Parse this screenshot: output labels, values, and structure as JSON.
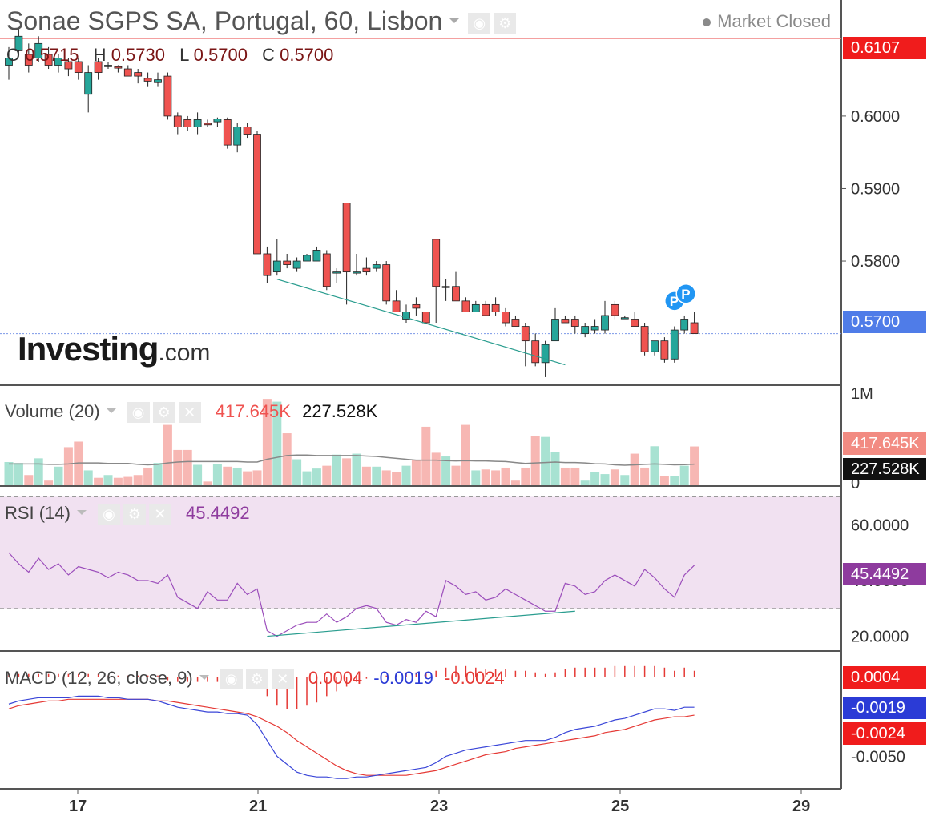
{
  "header": {
    "title": "Sonae SGPS SA, Portugal, 60, Lisbon",
    "market_status": "Market Closed",
    "ohlc": {
      "o_label": "O",
      "o": "0.5715",
      "h_label": "H",
      "h": "0.5730",
      "l_label": "L",
      "l": "0.5700",
      "c_label": "C",
      "c": "0.5700"
    },
    "logo_main": "Investing",
    "logo_suffix": ".com"
  },
  "colors": {
    "up": "#26a69a",
    "down": "#ef5350",
    "grid": "#d7d7d7",
    "rsi": "#9b4dbb",
    "macd": "#3a46d8",
    "signal": "#e53935"
  },
  "chart_data": [
    {
      "type": "candlestick",
      "title": "Sonae SGPS SA, Portugal, 60, Lisbon",
      "ylim": [
        0.563,
        0.616
      ],
      "yticks": [
        "0.6000",
        "0.5900",
        "0.5800"
      ],
      "x_ticks": [
        "17",
        "21",
        "23",
        "25",
        "29"
      ],
      "last_price": {
        "value": 0.57,
        "label": "0.5700"
      },
      "high_line": {
        "value": 0.6107,
        "label": "0.6107"
      },
      "candles": [
        [
          0.607,
          0.6095,
          0.605,
          0.608
        ],
        [
          0.609,
          0.612,
          0.6085,
          0.611
        ],
        [
          0.6085,
          0.61,
          0.606,
          0.607
        ],
        [
          0.608,
          0.611,
          0.6075,
          0.61
        ],
        [
          0.6085,
          0.6095,
          0.6065,
          0.607
        ],
        [
          0.607,
          0.6085,
          0.606,
          0.608
        ],
        [
          0.6075,
          0.608,
          0.6055,
          0.6065
        ],
        [
          0.6075,
          0.608,
          0.605,
          0.606
        ],
        [
          0.603,
          0.607,
          0.6005,
          0.606
        ],
        [
          0.6075,
          0.608,
          0.605,
          0.606
        ],
        [
          0.6068,
          0.6075,
          0.6065,
          0.607
        ],
        [
          0.6068,
          0.607,
          0.606,
          0.6066
        ],
        [
          0.6065,
          0.607,
          0.6055,
          0.6055
        ],
        [
          0.606,
          0.6065,
          0.6045,
          0.6055
        ],
        [
          0.6052,
          0.606,
          0.604,
          0.6048
        ],
        [
          0.6046,
          0.606,
          0.604,
          0.605
        ],
        [
          0.6055,
          0.606,
          0.5995,
          0.6
        ],
        [
          0.6,
          0.6005,
          0.5975,
          0.5985
        ],
        [
          0.5995,
          0.6,
          0.598,
          0.5985
        ],
        [
          0.5985,
          0.6005,
          0.5975,
          0.5995
        ],
        [
          0.599,
          0.5995,
          0.5985,
          0.5988
        ],
        [
          0.5992,
          0.5998,
          0.5985,
          0.5996
        ],
        [
          0.5995,
          0.5998,
          0.5955,
          0.596
        ],
        [
          0.596,
          0.599,
          0.595,
          0.5985
        ],
        [
          0.5985,
          0.599,
          0.597,
          0.5975
        ],
        [
          0.5975,
          0.598,
          0.581,
          0.581
        ],
        [
          0.581,
          0.582,
          0.577,
          0.578
        ],
        [
          0.5785,
          0.583,
          0.578,
          0.58
        ],
        [
          0.58,
          0.581,
          0.579,
          0.5795
        ],
        [
          0.579,
          0.5805,
          0.5785,
          0.58
        ],
        [
          0.58,
          0.581,
          0.58,
          0.5808
        ],
        [
          0.58,
          0.582,
          0.58,
          0.5815
        ],
        [
          0.581,
          0.5815,
          0.576,
          0.5765
        ],
        [
          0.5785,
          0.579,
          0.577,
          0.5785
        ],
        [
          0.588,
          0.588,
          0.574,
          0.5785
        ],
        [
          0.5785,
          0.581,
          0.578,
          0.5785
        ],
        [
          0.579,
          0.5805,
          0.578,
          0.5785
        ],
        [
          0.579,
          0.58,
          0.5785,
          0.5795
        ],
        [
          0.5795,
          0.58,
          0.574,
          0.5745
        ],
        [
          0.5745,
          0.576,
          0.573,
          0.573
        ],
        [
          0.572,
          0.574,
          0.5715,
          0.573
        ],
        [
          0.574,
          0.575,
          0.5725,
          0.5735
        ],
        [
          0.573,
          0.573,
          0.5715,
          0.5715
        ],
        [
          0.583,
          0.583,
          0.5715,
          0.5765
        ],
        [
          0.5765,
          0.5775,
          0.5745,
          0.5765
        ],
        [
          0.5765,
          0.5785,
          0.5745,
          0.5745
        ],
        [
          0.5745,
          0.575,
          0.573,
          0.573
        ],
        [
          0.573,
          0.5745,
          0.573,
          0.574
        ],
        [
          0.574,
          0.5745,
          0.5725,
          0.5725
        ],
        [
          0.574,
          0.575,
          0.5725,
          0.573
        ],
        [
          0.573,
          0.5735,
          0.571,
          0.5715
        ],
        [
          0.572,
          0.5725,
          0.571,
          0.571
        ],
        [
          0.571,
          0.5715,
          0.5655,
          0.569
        ],
        [
          0.569,
          0.57,
          0.5655,
          0.566
        ],
        [
          0.566,
          0.569,
          0.564,
          0.5685
        ],
        [
          0.569,
          0.5735,
          0.569,
          0.572
        ],
        [
          0.572,
          0.5725,
          0.5715,
          0.5715
        ],
        [
          0.572,
          0.5725,
          0.57,
          0.571
        ],
        [
          0.57,
          0.5715,
          0.5695,
          0.571
        ],
        [
          0.5705,
          0.572,
          0.57,
          0.571
        ],
        [
          0.5705,
          0.5745,
          0.57,
          0.5725
        ],
        [
          0.574,
          0.5745,
          0.572,
          0.5725
        ],
        [
          0.5722,
          0.5725,
          0.572,
          0.5722
        ],
        [
          0.572,
          0.573,
          0.571,
          0.571
        ],
        [
          0.571,
          0.5715,
          0.567,
          0.5675
        ],
        [
          0.5675,
          0.569,
          0.567,
          0.569
        ],
        [
          0.569,
          0.5695,
          0.566,
          0.5665
        ],
        [
          0.5665,
          0.571,
          0.566,
          0.5705
        ],
        [
          0.5705,
          0.5725,
          0.57,
          0.572
        ],
        [
          0.5715,
          0.573,
          0.57,
          0.57
        ]
      ],
      "trendline": {
        "from": [
          27,
          0.5775
        ],
        "to": [
          56,
          0.5657
        ]
      },
      "markers": [
        "P",
        "P"
      ]
    },
    {
      "type": "bar",
      "title": "Volume",
      "name": "Volume (20)",
      "ylim": [
        0,
        1000000
      ],
      "yticks": [
        "1M",
        "0"
      ],
      "values_label_down": "417.645K",
      "values_label_ma": "227.528K",
      "volumes": [
        250000,
        240000,
        110000,
        290000,
        50000,
        200000,
        410000,
        470000,
        160000,
        80000,
        110000,
        80000,
        90000,
        110000,
        190000,
        240000,
        650000,
        380000,
        380000,
        220000,
        40000,
        230000,
        200000,
        190000,
        150000,
        160000,
        930000,
        900000,
        560000,
        280000,
        150000,
        180000,
        210000,
        330000,
        290000,
        340000,
        200000,
        200000,
        160000,
        140000,
        210000,
        270000,
        630000,
        350000,
        310000,
        210000,
        650000,
        160000,
        170000,
        160000,
        190000,
        50000,
        190000,
        530000,
        520000,
        360000,
        190000,
        190000,
        50000,
        140000,
        120000,
        170000,
        110000,
        340000,
        190000,
        420000,
        100000,
        100000,
        210000,
        417645
      ],
      "ma": [
        230000,
        230000,
        230000,
        230000,
        225000,
        225000,
        230000,
        240000,
        240000,
        240000,
        235000,
        235000,
        235000,
        225000,
        220000,
        225000,
        240000,
        250000,
        255000,
        255000,
        255000,
        255000,
        255000,
        255000,
        250000,
        250000,
        280000,
        300000,
        320000,
        325000,
        325000,
        320000,
        320000,
        320000,
        320000,
        320000,
        315000,
        310000,
        300000,
        290000,
        280000,
        270000,
        270000,
        270000,
        265000,
        262000,
        265000,
        262000,
        262000,
        258000,
        255000,
        245000,
        235000,
        240000,
        245000,
        250000,
        245000,
        245000,
        240000,
        232000,
        230000,
        220000,
        215000,
        220000,
        225000,
        230000,
        225000,
        220000,
        222000,
        227528
      ]
    },
    {
      "type": "line",
      "title": "RSI",
      "name": "RSI (14)",
      "value_label": "45.4492",
      "ylim": [
        15,
        73
      ],
      "yticks": [
        "60.0000",
        "40.0000",
        "20.0000"
      ],
      "band": [
        30,
        70
      ],
      "values": [
        50,
        46,
        43,
        48,
        44,
        46,
        42,
        45,
        44,
        43,
        41,
        43,
        42,
        40,
        40,
        39,
        42,
        34,
        32,
        30,
        36,
        33,
        33,
        39,
        35,
        37,
        22,
        20,
        22,
        24,
        25,
        25,
        28,
        25,
        27,
        30,
        31,
        30,
        25,
        24,
        26,
        25,
        29,
        27,
        40,
        38,
        35,
        36,
        33,
        34,
        37,
        35,
        33,
        31,
        29,
        29,
        39,
        38,
        35,
        36,
        40,
        42,
        40,
        38,
        44,
        41,
        37,
        34,
        42,
        45.4492
      ],
      "trendline": {
        "from": [
          26,
          20
        ],
        "to": [
          57,
          29
        ]
      }
    },
    {
      "type": "line",
      "title": "MACD",
      "name": "MACD (12, 26, close, 9)",
      "labels": {
        "hist": "0.0004",
        "macd": "-0.0019",
        "signal": "-0.0024"
      },
      "ylim": [
        -0.007,
        0.0015
      ],
      "yticks": [
        "-0.0050"
      ],
      "macd": [
        -0.0017,
        -0.0015,
        -0.0014,
        -0.0013,
        -0.0013,
        -0.0013,
        -0.0013,
        -0.0012,
        -0.0012,
        -0.0012,
        -0.0013,
        -0.0013,
        -0.0014,
        -0.0014,
        -0.0014,
        -0.0015,
        -0.0017,
        -0.0019,
        -0.002,
        -0.0021,
        -0.0022,
        -0.0022,
        -0.0023,
        -0.0023,
        -0.0024,
        -0.003,
        -0.004,
        -0.005,
        -0.0055,
        -0.006,
        -0.0062,
        -0.0063,
        -0.0063,
        -0.0064,
        -0.0064,
        -0.0063,
        -0.0063,
        -0.0062,
        -0.0061,
        -0.006,
        -0.0059,
        -0.0058,
        -0.0057,
        -0.0054,
        -0.005,
        -0.0048,
        -0.0046,
        -0.0045,
        -0.0044,
        -0.0043,
        -0.0042,
        -0.0041,
        -0.004,
        -0.004,
        -0.004,
        -0.0038,
        -0.0035,
        -0.0033,
        -0.0032,
        -0.0031,
        -0.0029,
        -0.0027,
        -0.0026,
        -0.0024,
        -0.0022,
        -0.002,
        -0.002,
        -0.0021,
        -0.0019,
        -0.0019
      ],
      "signal": [
        -0.002,
        -0.0018,
        -0.0017,
        -0.0016,
        -0.0015,
        -0.0015,
        -0.0014,
        -0.0014,
        -0.0014,
        -0.0014,
        -0.0014,
        -0.0014,
        -0.0014,
        -0.0014,
        -0.0014,
        -0.0015,
        -0.0015,
        -0.0016,
        -0.0017,
        -0.0018,
        -0.0019,
        -0.002,
        -0.0021,
        -0.0022,
        -0.0023,
        -0.0025,
        -0.0028,
        -0.0031,
        -0.0035,
        -0.004,
        -0.0044,
        -0.0048,
        -0.0052,
        -0.0056,
        -0.0059,
        -0.0061,
        -0.0062,
        -0.0062,
        -0.0062,
        -0.0062,
        -0.0062,
        -0.0061,
        -0.006,
        -0.0059,
        -0.0057,
        -0.0055,
        -0.0053,
        -0.0051,
        -0.0049,
        -0.0048,
        -0.0047,
        -0.0045,
        -0.0044,
        -0.0043,
        -0.0042,
        -0.0041,
        -0.004,
        -0.0039,
        -0.0038,
        -0.0037,
        -0.0035,
        -0.0034,
        -0.0033,
        -0.0031,
        -0.0029,
        -0.0027,
        -0.0026,
        -0.0025,
        -0.0025,
        -0.0024
      ],
      "histogram": [
        0.0002,
        0.0002,
        0.0002,
        0.0002,
        0.0002,
        0.0002,
        0.0002,
        0.0002,
        0.0002,
        0.0002,
        0.0001,
        0.0001,
        0.0001,
        0.0001,
        0.0001,
        0.0001,
        -0.0002,
        -0.0003,
        -0.0003,
        -0.0003,
        -0.0003,
        -0.0003,
        -0.0003,
        -0.0002,
        -0.0002,
        -0.0005,
        -0.0012,
        -0.0018,
        -0.002,
        -0.002,
        -0.0018,
        -0.0016,
        -0.0012,
        -0.0009,
        -0.0006,
        -0.0003,
        -0.0001,
        0.0,
        0.0001,
        0.0002,
        0.0003,
        0.0003,
        0.0003,
        0.0004,
        0.0006,
        0.0007,
        0.0007,
        0.0006,
        0.0005,
        0.0005,
        0.0005,
        0.0004,
        0.0004,
        0.0003,
        0.0002,
        0.0003,
        0.0005,
        0.0006,
        0.0006,
        0.0006,
        0.0006,
        0.0007,
        0.0007,
        0.0007,
        0.0007,
        0.0007,
        0.0006,
        0.0004,
        0.0006,
        0.0004
      ]
    }
  ]
}
